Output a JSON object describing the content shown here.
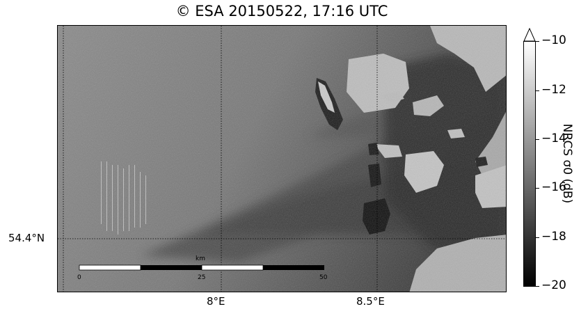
{
  "title": "© ESA 20150522, 17:16 UTC",
  "map": {
    "lat_label": "54.4°N",
    "lon_labels": [
      "8°E",
      "8.5°E"
    ]
  },
  "scalebar": {
    "unit": "km",
    "ticks": [
      "0",
      "25",
      "50"
    ]
  },
  "colorbar": {
    "title": "NRCS σ0 (dB)",
    "ticks": [
      "−10",
      "−12",
      "−14",
      "−16",
      "−18",
      "−20"
    ],
    "range": [
      -20,
      -10
    ],
    "extend": "max",
    "colormap": "gray"
  }
}
